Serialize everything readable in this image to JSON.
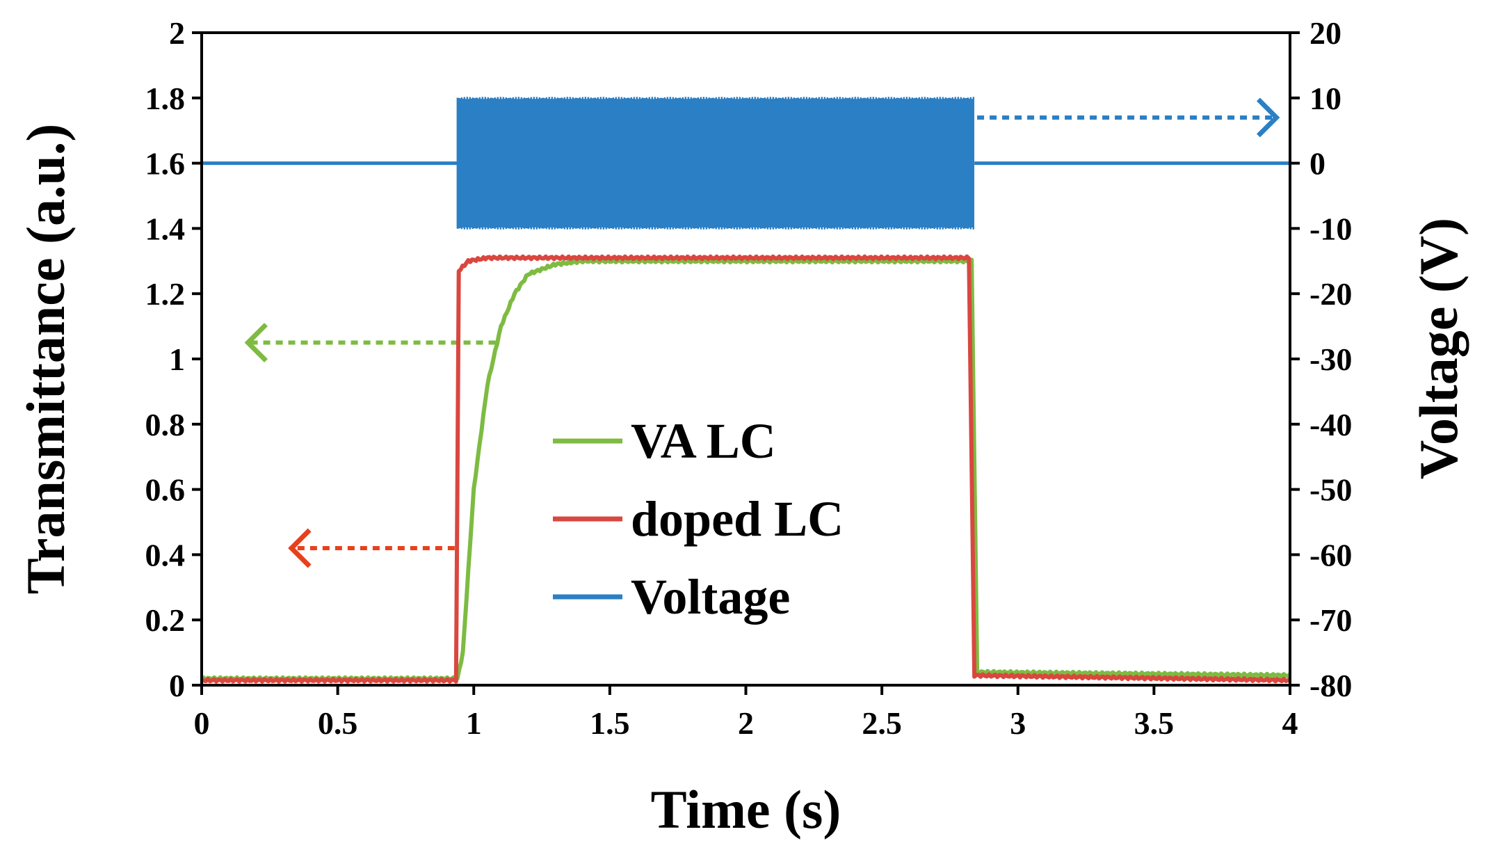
{
  "chart_data": {
    "type": "line",
    "title": "",
    "xlabel": "Time (s)",
    "ylabel_left": "Transmittance (a.u.)",
    "ylabel_right": "Voltage (V)",
    "xlim": [
      0,
      4
    ],
    "ylim_left": [
      0,
      2
    ],
    "ylim_right": [
      -80,
      20
    ],
    "x_ticks": [
      "0",
      "0.5",
      "1",
      "1.5",
      "2",
      "2.5",
      "3",
      "3.5",
      "4"
    ],
    "y_left_ticks": [
      "0",
      "0.2",
      "0.4",
      "0.6",
      "0.8",
      "1",
      "1.2",
      "1.4",
      "1.6",
      "1.8",
      "2"
    ],
    "y_right_ticks": [
      "-80",
      "-70",
      "-60",
      "-50",
      "-40",
      "-30",
      "-20",
      "-10",
      "0",
      "10",
      "20"
    ],
    "grid": false,
    "legend_position": "center",
    "colors": {
      "va_lc": "#7dbb42",
      "doped_lc": "#d9473f",
      "voltage": "#2b7fc4",
      "arrow_red": "#e8401c"
    },
    "series": [
      {
        "name": "VA LC",
        "axis": "left",
        "color": "#7dbb42",
        "points": [
          [
            0,
            0.02
          ],
          [
            0.94,
            0.02
          ],
          [
            0.96,
            0.1
          ],
          [
            1.0,
            0.6
          ],
          [
            1.05,
            0.92
          ],
          [
            1.1,
            1.1
          ],
          [
            1.15,
            1.2
          ],
          [
            1.2,
            1.26
          ],
          [
            1.3,
            1.29
          ],
          [
            1.4,
            1.3
          ],
          [
            2.83,
            1.3
          ],
          [
            2.85,
            0.04
          ],
          [
            4.0,
            0.03
          ]
        ]
      },
      {
        "name": "doped LC",
        "axis": "left",
        "color": "#d9473f",
        "points": [
          [
            0,
            0.015
          ],
          [
            0.935,
            0.015
          ],
          [
            0.945,
            1.27
          ],
          [
            0.98,
            1.3
          ],
          [
            1.05,
            1.31
          ],
          [
            2.82,
            1.31
          ],
          [
            2.84,
            0.03
          ],
          [
            4.0,
            0.015
          ]
        ]
      },
      {
        "name": "Voltage",
        "axis": "right",
        "color": "#2b7fc4",
        "off_level": 0,
        "on_start": 0.94,
        "on_end": 2.84,
        "amplitude": 10,
        "points": [
          [
            0,
            0
          ],
          [
            0.94,
            0
          ],
          [
            0.94,
            10
          ],
          [
            2.84,
            10
          ],
          [
            2.84,
            -10
          ],
          [
            0.94,
            -10
          ],
          [
            0.94,
            0
          ],
          [
            2.84,
            0
          ],
          [
            4.0,
            0
          ]
        ]
      }
    ],
    "legend": [
      "VA LC",
      "doped LC",
      "Voltage"
    ],
    "annotations": [
      {
        "type": "dotted-arrow",
        "series": "Voltage",
        "points_to": "right axis",
        "from": [
          2.85,
          7
        ],
        "to": [
          3.95,
          7
        ]
      },
      {
        "type": "dotted-arrow",
        "series": "VA LC",
        "points_to": "left axis",
        "from": [
          1.08,
          1.05
        ],
        "to": [
          0.17,
          1.05
        ]
      },
      {
        "type": "dotted-arrow",
        "series": "doped LC",
        "points_to": "left axis",
        "from": [
          0.93,
          0.42
        ],
        "to": [
          0.33,
          0.42
        ]
      }
    ]
  }
}
